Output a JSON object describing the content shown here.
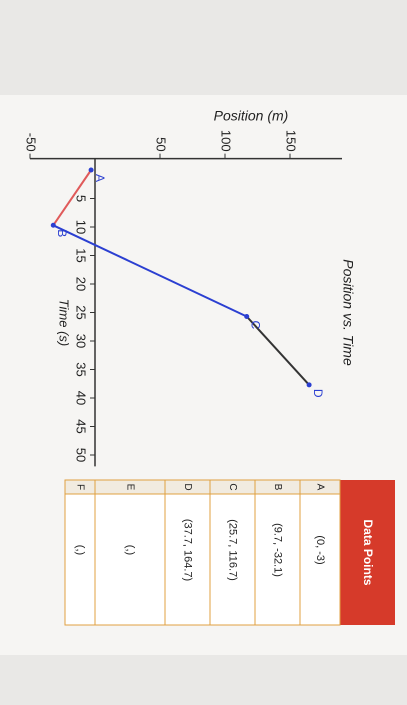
{
  "chart_data": {
    "type": "line",
    "title": "Position vs. Time",
    "x_label": "Time (s)",
    "y_label": "Position (m)",
    "x": [
      0,
      9.7,
      25.7,
      37.7
    ],
    "series": [
      {
        "values": [
          -3,
          -32.1,
          116.7,
          164.7
        ],
        "point_labels": [
          "A",
          "B",
          "C",
          "D"
        ],
        "segment_colors": [
          "#e05a5a",
          "#2b3fd1",
          "#333333"
        ]
      }
    ],
    "xlim": [
      -2,
      52
    ],
    "ylim": [
      -50,
      190
    ],
    "xticks": [
      5,
      10,
      15,
      20,
      25,
      30,
      35,
      40,
      45,
      50
    ],
    "yticks": [
      -50,
      50,
      100,
      150
    ]
  },
  "table": {
    "title": "Data Points",
    "rows": [
      [
        "A",
        "(0, -3)"
      ],
      [
        "B",
        "(9.7, -32.1)"
      ],
      [
        "C",
        "(25.7, 116.7)"
      ],
      [
        "D",
        "(37.7, 164.7)"
      ],
      [
        "E",
        "(,)"
      ],
      [
        "F",
        "(,)"
      ]
    ]
  }
}
